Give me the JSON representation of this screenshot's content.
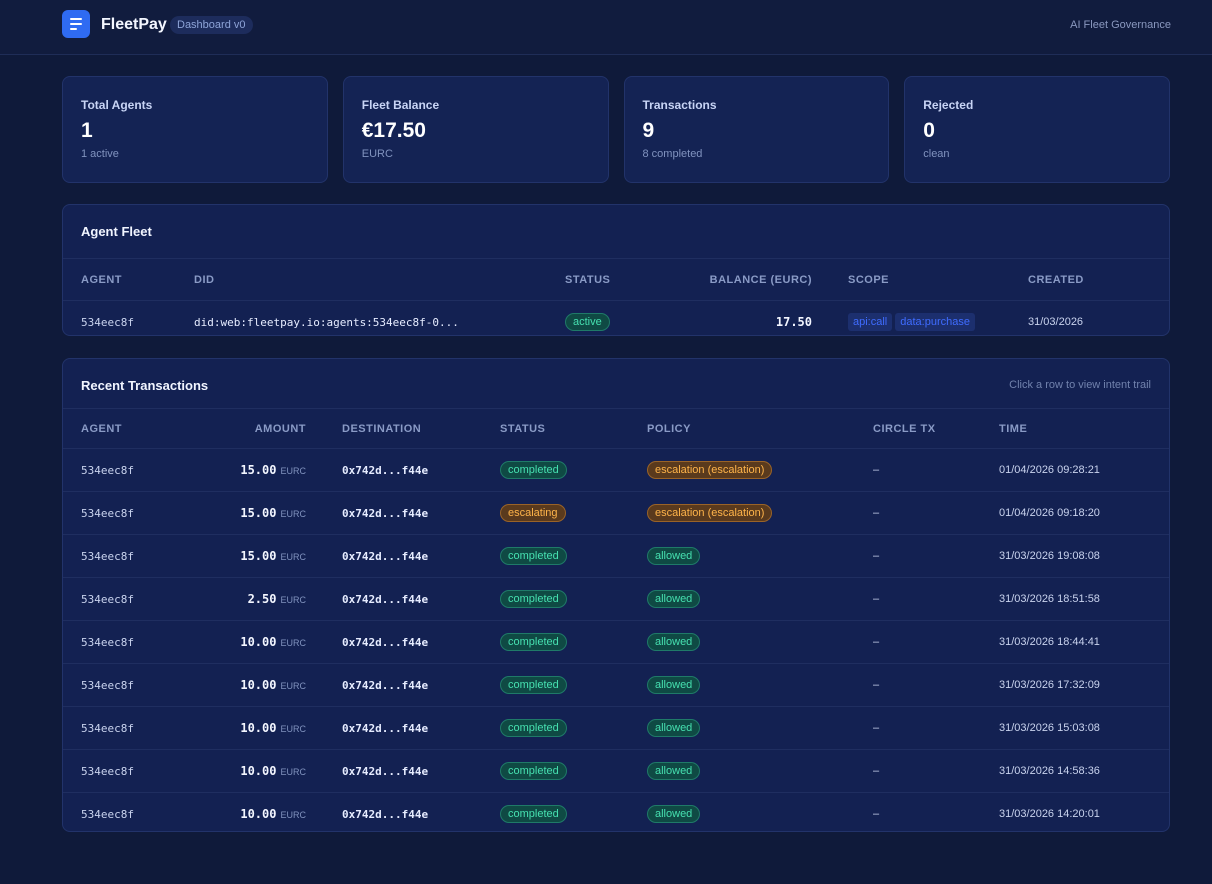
{
  "header": {
    "brand": "FleetPay",
    "version": "Dashboard v0",
    "tagline": "AI Fleet Governance"
  },
  "stats": [
    {
      "label": "Total Agents",
      "value": "1",
      "sub": "1 active"
    },
    {
      "label": "Fleet Balance",
      "value": "€17.50",
      "sub": "EURC"
    },
    {
      "label": "Transactions",
      "value": "9",
      "sub": "8 completed"
    },
    {
      "label": "Rejected",
      "value": "0",
      "sub": "clean"
    }
  ],
  "fleet": {
    "title": "Agent Fleet",
    "columns": {
      "agent": "AGENT",
      "did": "DID",
      "status": "STATUS",
      "balance": "BALANCE (EURC)",
      "scope": "SCOPE",
      "created": "CREATED"
    },
    "rows": [
      {
        "agent": "534eec8f",
        "did": "did:web:fleetpay.io:agents:534eec8f-0...",
        "status": "active",
        "balance": "17.50",
        "scopes": [
          "api:call",
          "data:purchase"
        ],
        "created": "31/03/2026"
      }
    ]
  },
  "transactions": {
    "title": "Recent Transactions",
    "hint": "Click a row to view intent trail",
    "columns": {
      "agent": "AGENT",
      "amount": "AMOUNT",
      "destination": "DESTINATION",
      "status": "STATUS",
      "policy": "POLICY",
      "circle": "CIRCLE TX",
      "time": "TIME"
    },
    "rows": [
      {
        "agent": "534eec8f",
        "amount": "15.00",
        "unit": "EURC",
        "destination": "0x742d...f44e",
        "status": "completed",
        "status_kind": "green",
        "policy": "escalation (escalation)",
        "policy_kind": "orange",
        "circle": "–",
        "time": "01/04/2026 09:28:21"
      },
      {
        "agent": "534eec8f",
        "amount": "15.00",
        "unit": "EURC",
        "destination": "0x742d...f44e",
        "status": "escalating",
        "status_kind": "orange",
        "policy": "escalation (escalation)",
        "policy_kind": "orange",
        "circle": "–",
        "time": "01/04/2026 09:18:20"
      },
      {
        "agent": "534eec8f",
        "amount": "15.00",
        "unit": "EURC",
        "destination": "0x742d...f44e",
        "status": "completed",
        "status_kind": "green",
        "policy": "allowed",
        "policy_kind": "green",
        "circle": "–",
        "time": "31/03/2026 19:08:08"
      },
      {
        "agent": "534eec8f",
        "amount": "2.50",
        "unit": "EURC",
        "destination": "0x742d...f44e",
        "status": "completed",
        "status_kind": "green",
        "policy": "allowed",
        "policy_kind": "green",
        "circle": "–",
        "time": "31/03/2026 18:51:58"
      },
      {
        "agent": "534eec8f",
        "amount": "10.00",
        "unit": "EURC",
        "destination": "0x742d...f44e",
        "status": "completed",
        "status_kind": "green",
        "policy": "allowed",
        "policy_kind": "green",
        "circle": "–",
        "time": "31/03/2026 18:44:41"
      },
      {
        "agent": "534eec8f",
        "amount": "10.00",
        "unit": "EURC",
        "destination": "0x742d...f44e",
        "status": "completed",
        "status_kind": "green",
        "policy": "allowed",
        "policy_kind": "green",
        "circle": "–",
        "time": "31/03/2026 17:32:09"
      },
      {
        "agent": "534eec8f",
        "amount": "10.00",
        "unit": "EURC",
        "destination": "0x742d...f44e",
        "status": "completed",
        "status_kind": "green",
        "policy": "allowed",
        "policy_kind": "green",
        "circle": "–",
        "time": "31/03/2026 15:03:08"
      },
      {
        "agent": "534eec8f",
        "amount": "10.00",
        "unit": "EURC",
        "destination": "0x742d...f44e",
        "status": "completed",
        "status_kind": "green",
        "policy": "allowed",
        "policy_kind": "green",
        "circle": "–",
        "time": "31/03/2026 14:58:36"
      },
      {
        "agent": "534eec8f",
        "amount": "10.00",
        "unit": "EURC",
        "destination": "0x742d...f44e",
        "status": "completed",
        "status_kind": "green",
        "policy": "allowed",
        "policy_kind": "green",
        "circle": "–",
        "time": "31/03/2026 14:20:01"
      }
    ]
  },
  "colors": {
    "background": "#0f1a3a",
    "accent": "#2f6bf2",
    "success": "#46e0b0",
    "warning": "#ffb44a"
  }
}
